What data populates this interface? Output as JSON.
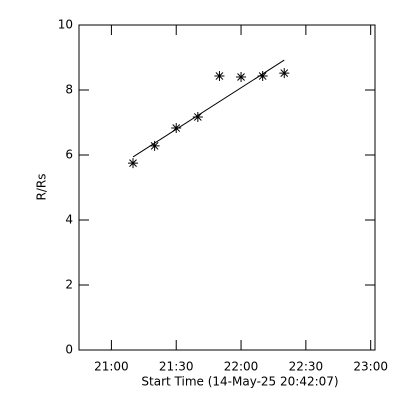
{
  "chart_data": {
    "type": "scatter",
    "xlabel": "Start Time (14-May-25 20:42:07)",
    "ylabel": "R/Rs",
    "x": [
      1270,
      1280,
      1290,
      1300,
      1310,
      1320,
      1330,
      1340
    ],
    "values": [
      5.75,
      6.28,
      6.83,
      7.17,
      8.43,
      8.4,
      8.43,
      8.52
    ],
    "color": "#000000",
    "fit_line": {
      "x": [
        1270,
        1340
      ],
      "values": [
        5.94,
        8.92
      ]
    },
    "xlim": [
      1245,
      1382
    ],
    "xticks": [
      {
        "value": 1260,
        "label": "21:00"
      },
      {
        "value": 1290,
        "label": "21:30"
      },
      {
        "value": 1320,
        "label": "22:00"
      },
      {
        "value": 1350,
        "label": "22:30"
      },
      {
        "value": 1380,
        "label": "23:00"
      }
    ],
    "ylim": [
      0,
      10
    ],
    "yticks": [
      0,
      2,
      4,
      6,
      8,
      10
    ]
  }
}
